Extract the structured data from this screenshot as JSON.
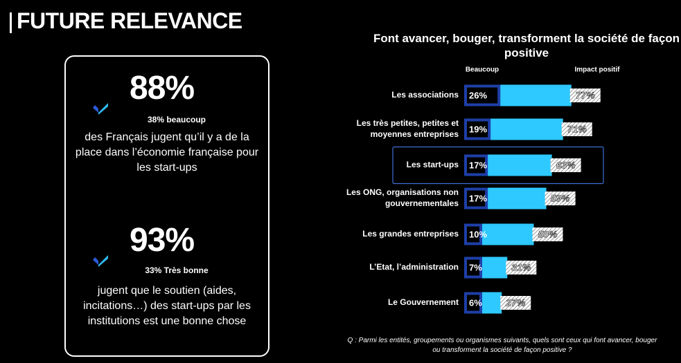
{
  "header": {
    "title": "FUTURE RELEVANCE"
  },
  "card": {
    "stat1": {
      "value": "88%",
      "sub": "38% beaucoup",
      "desc": "des Français jugent qu’il y a de la place dans l’économie française pour les start-ups"
    },
    "stat2": {
      "value": "93%",
      "sub": "33% Très bonne",
      "desc": "jugent que le soutien (aides, incitations…) des start-ups par les institutions est une bonne chose"
    },
    "check_icon_colors": [
      "#2a5bd7",
      "#2fb9f0"
    ]
  },
  "chart_data": {
    "type": "bar",
    "title": "Font avancer, bouger, transforment la société de façon positive",
    "series": [
      {
        "name": "Beaucoup",
        "color": "#1e3fa8",
        "values": [
          26,
          19,
          17,
          17,
          10,
          7,
          6
        ]
      },
      {
        "name": "Impact positif",
        "color": "#2ec9ff",
        "values": [
          77,
          71,
          63,
          59,
          50,
          31,
          27
        ]
      }
    ],
    "categories": [
      "Les associations",
      "Les très petites, petites et moyennes entreprises",
      "Les start-ups",
      "Les ONG, organisations non gouvernementales",
      "Les grandes entreprises",
      "L’Etat, l’administration",
      "Le Gouvernement"
    ],
    "value_labels_beaucoup": [
      "26%",
      "19%",
      "17%",
      "17%",
      "10%",
      "7%",
      "6%"
    ],
    "value_labels_impact": [
      "77%",
      "71%",
      "63%",
      "59%",
      "50%",
      "31%",
      "27%"
    ],
    "highlighted_category": "Les start-ups",
    "xlim": [
      0,
      100
    ]
  },
  "footnote": "Q : Parmi les entités, groupements ou organismes suivants, quels sont ceux qui font avancer, bouger ou transforment la société de façon positive ?"
}
